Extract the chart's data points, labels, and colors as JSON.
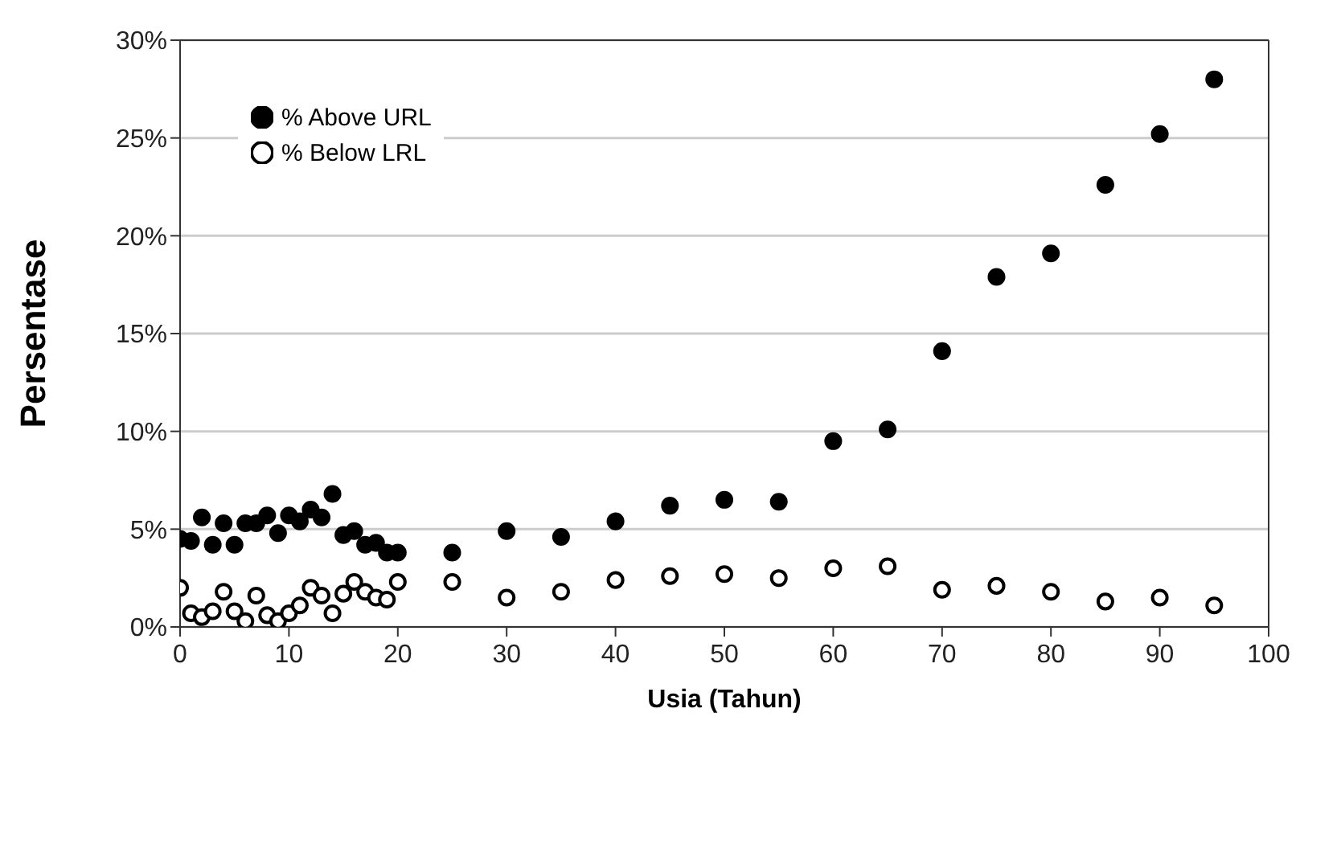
{
  "chart_data": {
    "type": "scatter",
    "xlabel": "Usia (Tahun)",
    "ylabel": "Persentase",
    "xlim": [
      0,
      100
    ],
    "xticks": [
      0,
      10,
      20,
      30,
      40,
      50,
      60,
      70,
      80,
      90,
      100
    ],
    "ylim": [
      0,
      30
    ],
    "yticks": [
      {
        "value": 0,
        "label": "0%"
      },
      {
        "value": 5,
        "label": "5%"
      },
      {
        "value": 10,
        "label": "10%"
      },
      {
        "value": 15,
        "label": "15%"
      },
      {
        "value": 20,
        "label": "20%"
      },
      {
        "value": 25,
        "label": "25%"
      },
      {
        "value": 30,
        "label": "30%"
      }
    ],
    "x": [
      0,
      1,
      2,
      3,
      4,
      5,
      6,
      7,
      8,
      9,
      10,
      11,
      12,
      13,
      14,
      15,
      16,
      17,
      18,
      19,
      20,
      25,
      30,
      35,
      40,
      45,
      50,
      55,
      60,
      65,
      70,
      75,
      80,
      85,
      90,
      95
    ],
    "series": [
      {
        "name": "% Above URL",
        "color": "#000000",
        "values": [
          4.5,
          4.4,
          5.6,
          4.2,
          5.3,
          4.2,
          5.3,
          5.3,
          5.7,
          4.8,
          5.7,
          5.4,
          6.0,
          5.6,
          6.8,
          4.7,
          4.9,
          4.2,
          4.3,
          3.8,
          3.8,
          3.8,
          4.9,
          4.6,
          5.4,
          6.2,
          6.5,
          6.4,
          9.5,
          10.1,
          14.1,
          17.9,
          19.1,
          22.6,
          25.2,
          28.0
        ]
      },
      {
        "name": "% Below LRL",
        "color": "#ffffff",
        "values": [
          2.0,
          0.7,
          0.5,
          0.8,
          1.8,
          0.8,
          0.3,
          1.6,
          0.6,
          0.3,
          0.7,
          1.1,
          2.0,
          1.6,
          0.7,
          1.7,
          2.3,
          1.8,
          1.5,
          1.4,
          2.3,
          2.3,
          1.5,
          1.8,
          2.4,
          2.6,
          2.7,
          2.5,
          3.0,
          3.1,
          1.9,
          2.1,
          1.8,
          1.3,
          1.5,
          1.1
        ]
      }
    ],
    "marker": "circle",
    "grid": "y",
    "legend": "top left"
  }
}
